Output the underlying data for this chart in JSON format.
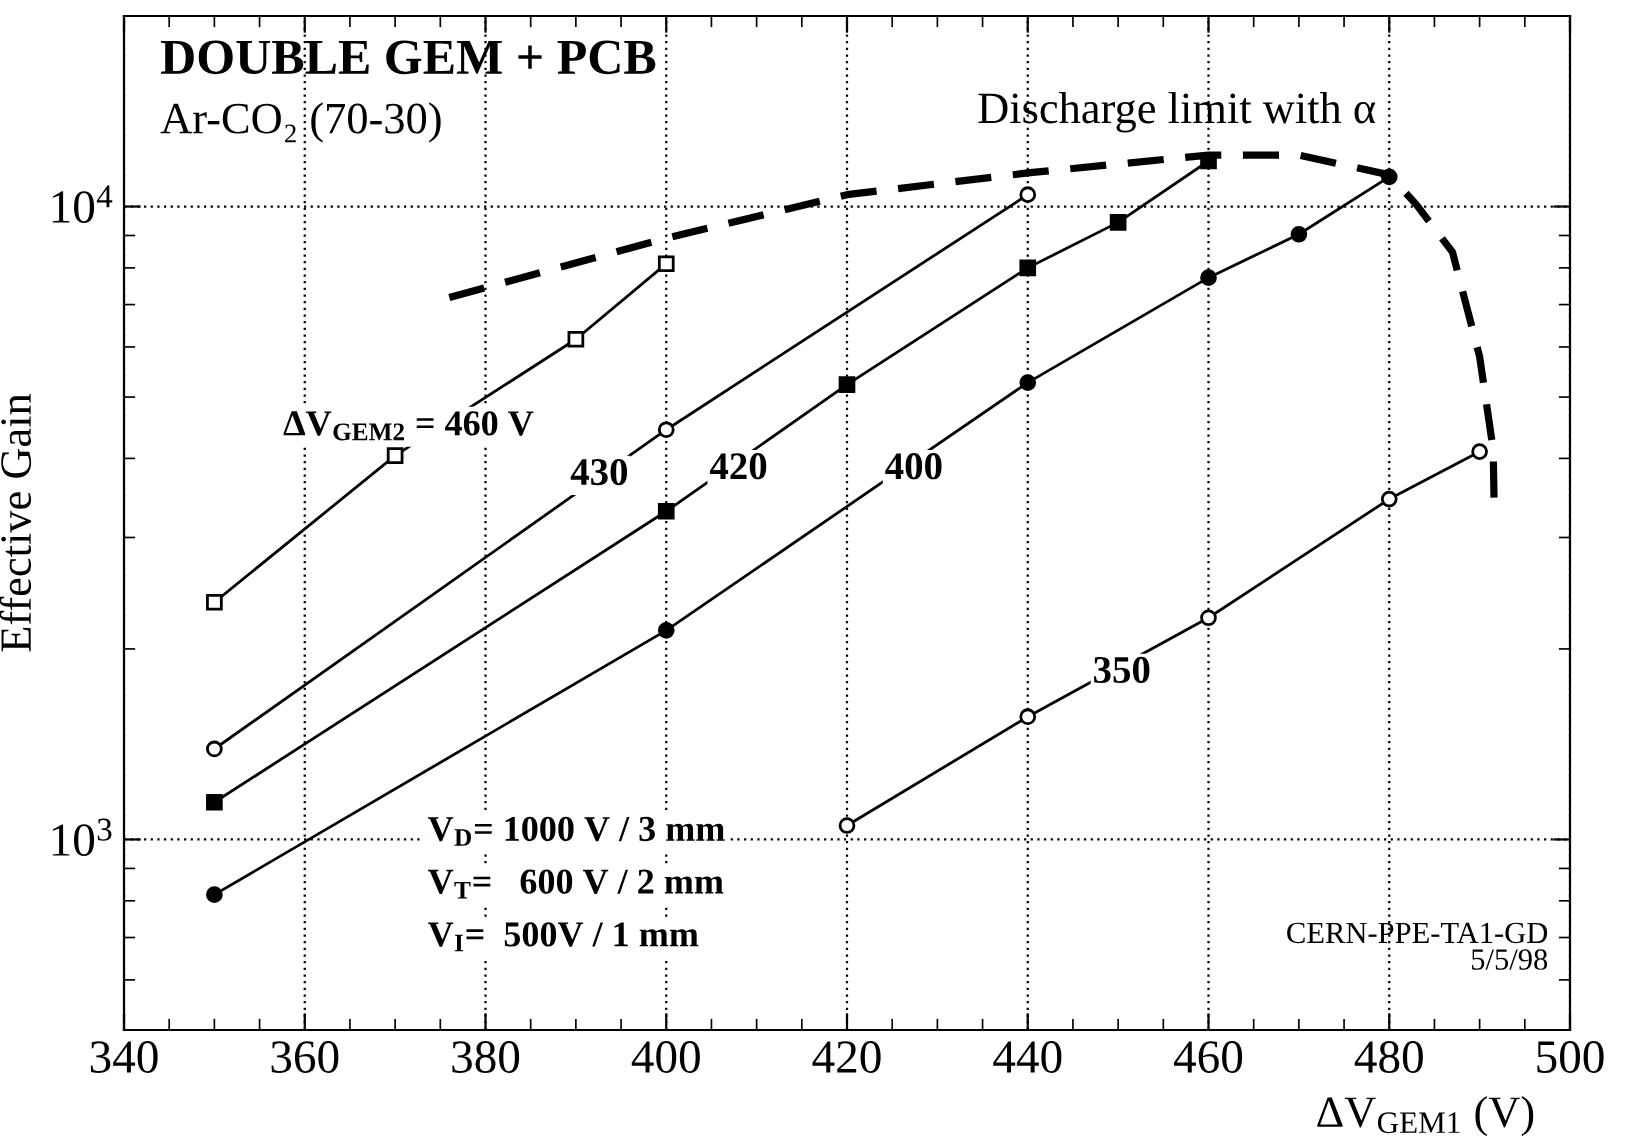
{
  "chart_data": {
    "type": "line",
    "title": "DOUBLE GEM + PCB",
    "subtitle": "Ar-CO₂ (70-30)",
    "xlabel": "ΔV$_{GEM1}$ (V)",
    "ylabel": "Effective Gain",
    "log": "y",
    "grid": true,
    "xlim": [
      340,
      500
    ],
    "xticks": [
      340,
      360,
      380,
      400,
      420,
      440,
      460,
      480,
      500
    ],
    "ylim": [
      500,
      20000
    ],
    "yticks": [
      {
        "value": 1000,
        "label": "10$^{3}$"
      },
      {
        "value": 10000,
        "label": "10$^{4}$"
      }
    ],
    "series": [
      {
        "color": "#000000",
        "marker": "square",
        "x": [
          350,
          370,
          390,
          400
        ],
        "values": [
          2370,
          4040,
          6170,
          8120
        ]
      },
      {
        "color": "#000000",
        "marker": "circle",
        "x": [
          350,
          400,
          440
        ],
        "values": [
          1390,
          4440,
          10440
        ]
      },
      {
        "color": "#000000",
        "marker": "square",
        "x": [
          350,
          400,
          420,
          440,
          450,
          460
        ],
        "values": [
          1145,
          3300,
          5230,
          8000,
          9440,
          11800
        ]
      },
      {
        "color": "#000000",
        "marker": "circle",
        "x": [
          350,
          400,
          440,
          460,
          470,
          480
        ],
        "values": [
          818,
          2140,
          5270,
          7720,
          9040,
          11140
        ]
      },
      {
        "color": "#000000",
        "marker": "circle",
        "x": [
          420,
          440,
          460,
          480,
          490
        ],
        "values": [
          1052,
          1563,
          2240,
          3450,
          4100
        ]
      },
      {
        "color": "#000000",
        "marker": "none",
        "line_style": "dashed",
        "x": [
          376,
          400,
          420,
          440,
          460,
          470,
          480,
          483,
          487,
          490,
          491.5,
          491.6
        ],
        "values": [
          7180,
          8910,
          10440,
          11300,
          12060,
          12060,
          11220,
          10070,
          8470,
          5790,
          4130,
          3420
        ]
      }
    ],
    "annotations": [
      "ΔV$_{GEM2}$ = 460 V",
      {
        "text": "430",
        "x": 392.6,
        "y": 3760
      },
      {
        "text": "420",
        "x": 408,
        "y": 3840
      },
      {
        "text": "400",
        "x": 427.4,
        "y": 3840
      },
      {
        "text": "350",
        "x": 450.4,
        "y": 1830
      },
      "Discharge limit with α",
      "V$_{D}$= 1000 V / 3 mm",
      "V$_{T}$=   600 V / 2 mm",
      "V$_{I}$=  500V / 1 mm",
      "CERN-PPE-TA1-GD\n5/5/98"
    ]
  }
}
